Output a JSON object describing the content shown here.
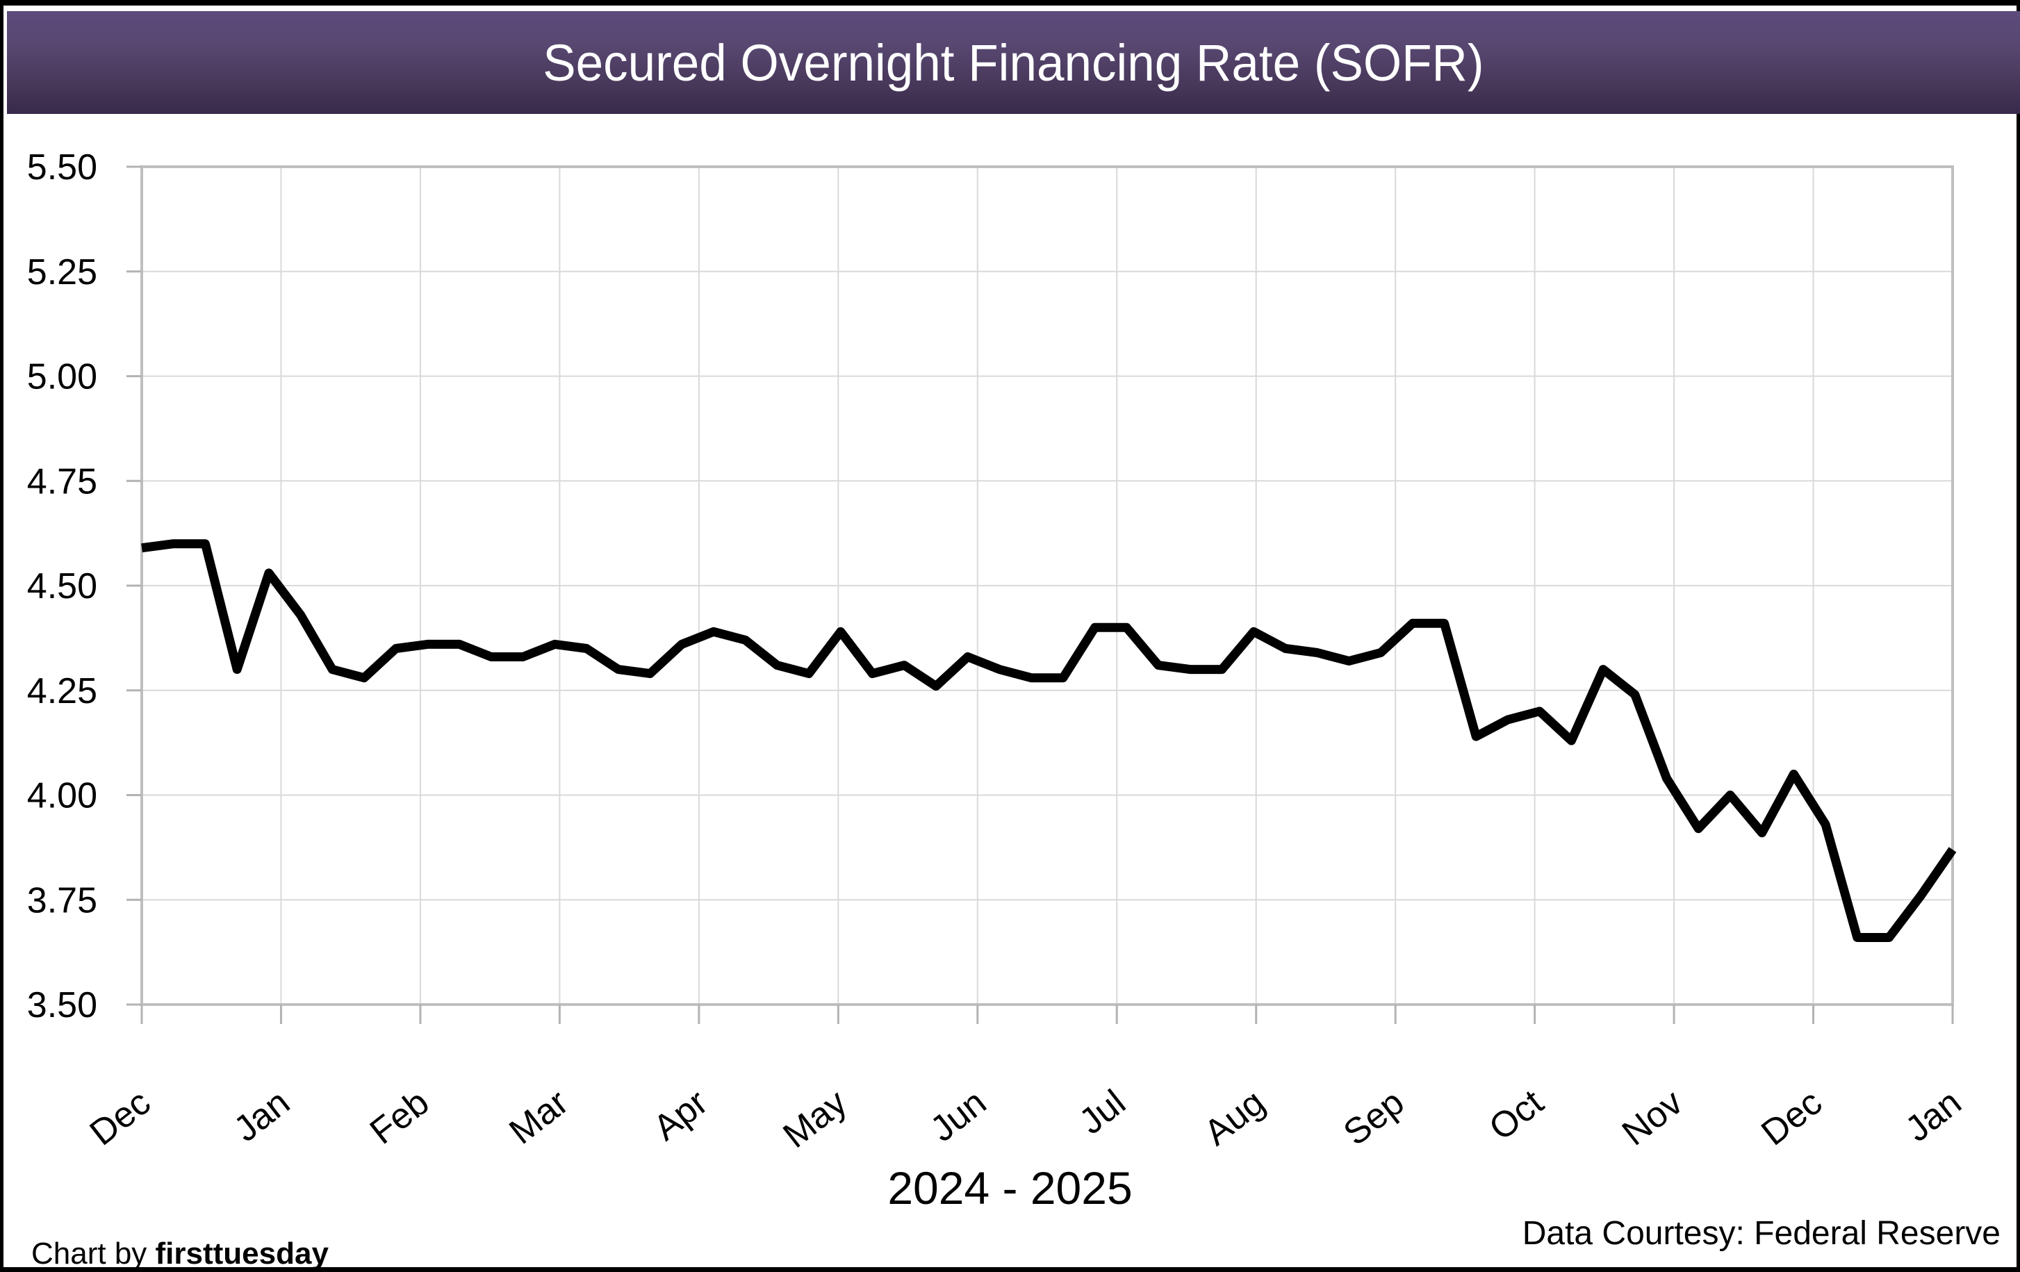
{
  "header": {
    "title": "Secured Overnight Financing Rate (SOFR)"
  },
  "footer": {
    "credit_prefix": "Chart by ",
    "credit_brand": "firsttuesday",
    "data_courtesy": "Data Courtesy: Federal Reserve"
  },
  "chart_data": {
    "type": "line",
    "title": "Secured Overnight Financing Rate (SOFR)",
    "xlabel": "2024 - 2025",
    "ylabel": "",
    "ylim": [
      3.5,
      5.5
    ],
    "y_tick_step": 0.25,
    "y_tick_labels": [
      "5.50",
      "5.25",
      "5.00",
      "4.75",
      "4.50",
      "4.25",
      "4.00",
      "3.75",
      "3.50"
    ],
    "x_tick_labels": [
      "Dec",
      "Jan",
      "Feb",
      "Mar",
      "Apr",
      "May",
      "Jun",
      "Jul",
      "Aug",
      "Sep",
      "Oct",
      "Nov",
      "Dec",
      "Jan"
    ],
    "grid": true,
    "legend": "none",
    "series": [
      {
        "name": "SOFR",
        "values": [
          4.59,
          4.6,
          4.6,
          4.3,
          4.53,
          4.43,
          4.3,
          4.28,
          4.35,
          4.36,
          4.36,
          4.33,
          4.33,
          4.36,
          4.35,
          4.3,
          4.29,
          4.36,
          4.39,
          4.37,
          4.31,
          4.29,
          4.39,
          4.29,
          4.31,
          4.26,
          4.33,
          4.3,
          4.28,
          4.28,
          4.4,
          4.4,
          4.31,
          4.3,
          4.3,
          4.39,
          4.35,
          4.34,
          4.32,
          4.34,
          4.41,
          4.41,
          4.14,
          4.18,
          4.2,
          4.13,
          4.3,
          4.24,
          4.04,
          3.92,
          4.0,
          3.91,
          4.05,
          3.93,
          3.66,
          3.66,
          3.76,
          3.87
        ]
      }
    ],
    "colors": {
      "line": "#000000",
      "gridline": "#d9d9d9",
      "plot_border": "#bfbfbf",
      "tick": "#b3b3b3",
      "banner_top": "#5c4b7c",
      "banner_bottom": "#382a4b",
      "text": "#000000"
    },
    "layout": {
      "plot_left": 204,
      "plot_top": 240,
      "plot_right": 2810,
      "plot_bottom": 1446,
      "line_width": 13
    }
  }
}
